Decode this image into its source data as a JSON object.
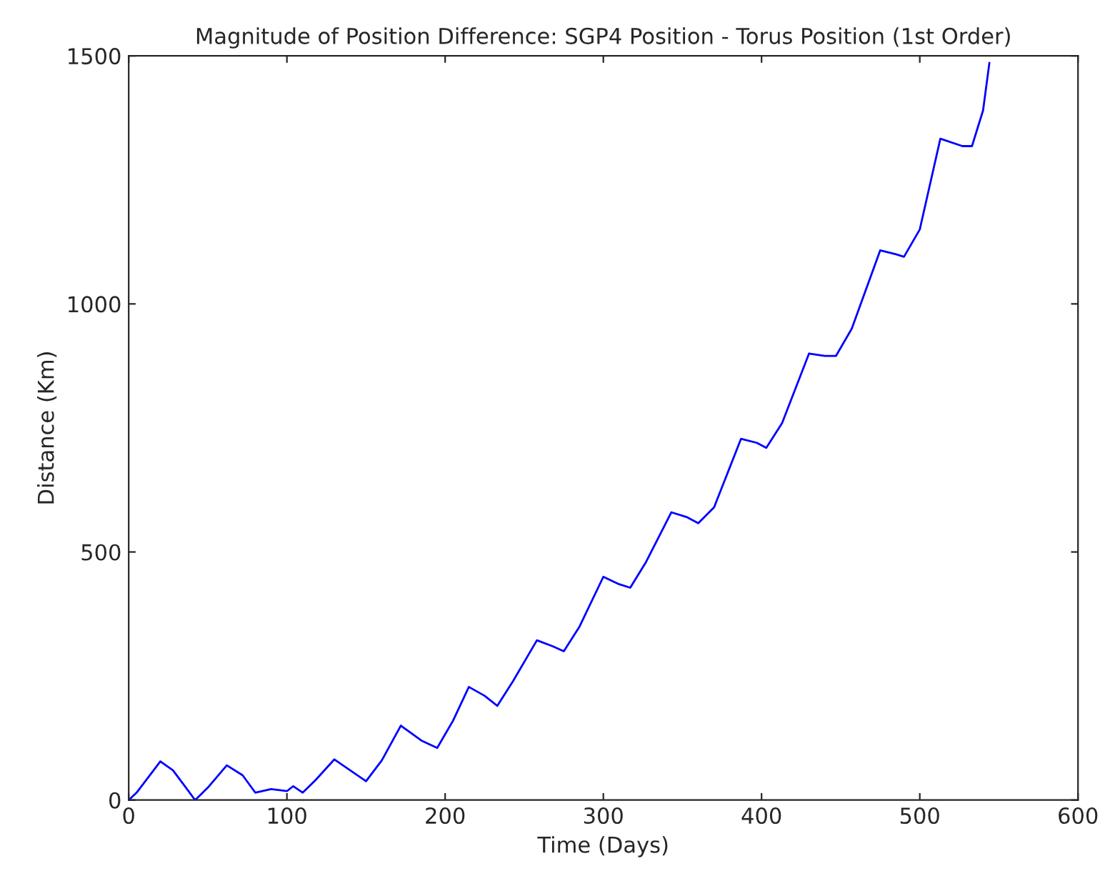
{
  "chart_data": {
    "type": "line",
    "title": "Magnitude of Position Difference: SGP4 Position - Torus Position (1st Order)",
    "xlabel": "Time (Days)",
    "ylabel": "Distance (Km)",
    "x": [
      0,
      5,
      20,
      28,
      42,
      50,
      62,
      72,
      80,
      90,
      100,
      104,
      110,
      118,
      130,
      140,
      150,
      160,
      172,
      185,
      195,
      205,
      215,
      225,
      233,
      243,
      258,
      268,
      275,
      285,
      300,
      310,
      317,
      327,
      343,
      353,
      360,
      370,
      387,
      397,
      403,
      413,
      430,
      440,
      447,
      457,
      475,
      485,
      490,
      500,
      513,
      527,
      533,
      540,
      544
    ],
    "series": [
      {
        "color": "#0000ff",
        "values": [
          0,
          15,
          78,
          60,
          0,
          25,
          70,
          50,
          15,
          22,
          18,
          28,
          15,
          40,
          82,
          60,
          38,
          80,
          150,
          120,
          105,
          160,
          228,
          210,
          190,
          240,
          322,
          310,
          300,
          350,
          450,
          435,
          428,
          480,
          580,
          570,
          558,
          590,
          728,
          720,
          710,
          760,
          900,
          895,
          895,
          950,
          1108,
          1100,
          1095,
          1150,
          1333,
          1318,
          1318,
          1390,
          1486
        ]
      }
    ],
    "xlim": [
      0,
      600
    ],
    "ylim": [
      0,
      1500
    ],
    "xticks": [
      0,
      100,
      200,
      300,
      400,
      500,
      600
    ],
    "yticks": [
      0,
      500,
      1000,
      1500
    ],
    "grid": false,
    "legend": false,
    "marker": "none",
    "line_style": "solid"
  }
}
